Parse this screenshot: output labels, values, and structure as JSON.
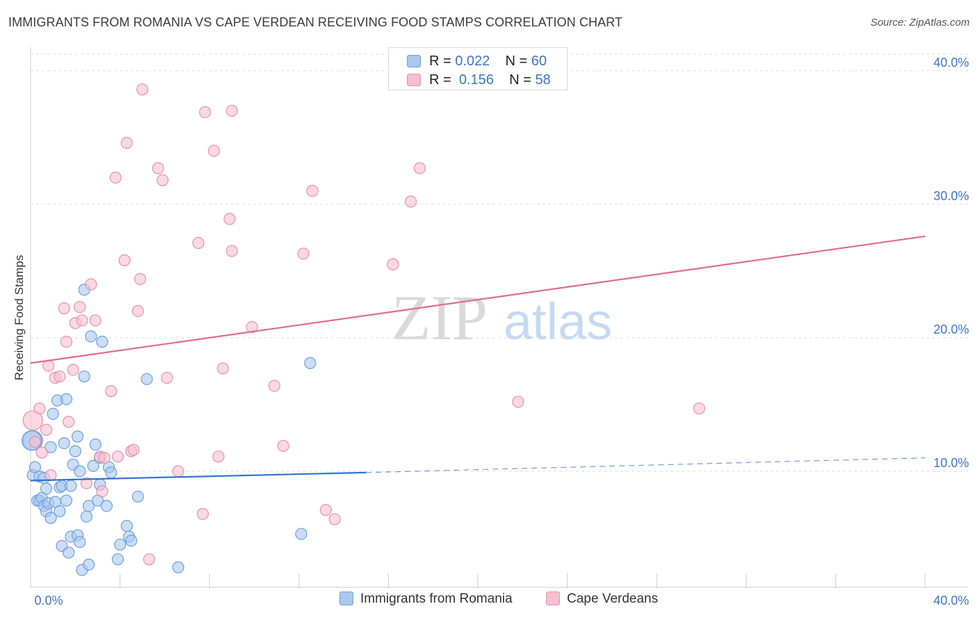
{
  "title": "IMMIGRANTS FROM ROMANIA VS CAPE VERDEAN RECEIVING FOOD STAMPS CORRELATION CHART",
  "source": "Source: ZipAtlas.com",
  "watermark": {
    "zip": "ZIP",
    "atlas": "atlas"
  },
  "legend_top": [
    {
      "r_label": "R = ",
      "r_value": "0.022",
      "n_label": "N = ",
      "n_value": "60"
    },
    {
      "r_label": "R = ",
      "r_value": "0.156",
      "n_label": "N = ",
      "n_value": "58"
    }
  ],
  "colors": {
    "blue_fill": "#aac8ef",
    "blue_stroke": "#6d9fe0",
    "blue_line": "#2f72d6",
    "pink_fill": "#f6bfd0",
    "pink_stroke": "#e98fac",
    "pink_line": "#e26a92",
    "tick_label": "#3d74c6",
    "grid": "#dddddd"
  },
  "chart_data": {
    "type": "scatter",
    "title": "IMMIGRANTS FROM ROMANIA VS CAPE VERDEAN RECEIVING FOOD STAMPS CORRELATION CHART",
    "xlabel": "",
    "ylabel": "Receiving Food Stamps",
    "xlim": [
      0,
      40
    ],
    "ylim": [
      1.3,
      41.5
    ],
    "x_tick_labels": [
      "0.0%",
      "40.0%"
    ],
    "y_ticks": [
      10,
      20,
      30,
      40
    ],
    "y_tick_labels": [
      "10.0%",
      "20.0%",
      "30.0%",
      "40.0%"
    ],
    "grid": "horizontal dashed",
    "legend_position": "top-center",
    "series": [
      {
        "name": "Immigrants from Romania",
        "R": 0.022,
        "N": 60,
        "trend": {
          "x0": 0,
          "y0": 9.3,
          "x1": 15,
          "y1": 9.9,
          "dashed_to_x": 40,
          "dashed_to_y": 11.0
        },
        "points": [
          [
            0.1,
            12.3
          ],
          [
            0.1,
            9.7
          ],
          [
            0.2,
            10.3
          ],
          [
            0.3,
            7.8
          ],
          [
            0.4,
            9.6
          ],
          [
            0.4,
            7.8
          ],
          [
            0.5,
            8.0
          ],
          [
            0.6,
            9.5
          ],
          [
            0.6,
            7.4
          ],
          [
            0.7,
            7.0
          ],
          [
            0.7,
            8.7
          ],
          [
            0.8,
            7.6
          ],
          [
            0.9,
            11.8
          ],
          [
            0.9,
            6.5
          ],
          [
            1.0,
            14.3
          ],
          [
            1.1,
            7.7
          ],
          [
            1.2,
            15.3
          ],
          [
            1.3,
            7.0
          ],
          [
            1.3,
            8.8
          ],
          [
            1.4,
            4.4
          ],
          [
            1.4,
            8.9
          ],
          [
            1.5,
            12.1
          ],
          [
            1.6,
            15.4
          ],
          [
            1.6,
            7.8
          ],
          [
            1.7,
            3.9
          ],
          [
            1.8,
            5.1
          ],
          [
            1.8,
            8.9
          ],
          [
            1.9,
            10.5
          ],
          [
            2.0,
            11.5
          ],
          [
            2.1,
            5.2
          ],
          [
            2.1,
            12.6
          ],
          [
            2.2,
            10.0
          ],
          [
            2.2,
            4.7
          ],
          [
            2.3,
            2.6
          ],
          [
            2.4,
            17.1
          ],
          [
            2.4,
            23.6
          ],
          [
            2.5,
            6.6
          ],
          [
            2.6,
            7.4
          ],
          [
            2.6,
            3.0
          ],
          [
            2.7,
            20.1
          ],
          [
            2.8,
            10.4
          ],
          [
            2.9,
            12.0
          ],
          [
            3.0,
            7.8
          ],
          [
            3.1,
            9.0
          ],
          [
            3.1,
            11.0
          ],
          [
            3.2,
            19.7
          ],
          [
            3.4,
            7.4
          ],
          [
            3.5,
            10.3
          ],
          [
            3.6,
            9.9
          ],
          [
            3.9,
            3.4
          ],
          [
            4.0,
            4.5
          ],
          [
            4.3,
            5.9
          ],
          [
            4.4,
            5.1
          ],
          [
            4.5,
            4.8
          ],
          [
            4.8,
            8.1
          ],
          [
            5.2,
            16.9
          ],
          [
            6.6,
            2.8
          ],
          [
            12.1,
            5.3
          ],
          [
            12.5,
            18.1
          ],
          [
            0.05,
            12.3
          ]
        ]
      },
      {
        "name": "Cape Verdeans",
        "R": 0.156,
        "N": 58,
        "trend": {
          "x0": 0,
          "y0": 18.1,
          "x1": 40,
          "y1": 27.6
        },
        "points": [
          [
            0.1,
            13.8
          ],
          [
            0.2,
            12.2
          ],
          [
            0.4,
            14.7
          ],
          [
            0.5,
            11.4
          ],
          [
            0.7,
            13.1
          ],
          [
            0.8,
            17.9
          ],
          [
            0.9,
            9.7
          ],
          [
            1.1,
            17.0
          ],
          [
            1.3,
            17.1
          ],
          [
            1.5,
            22.2
          ],
          [
            1.6,
            19.7
          ],
          [
            1.7,
            13.7
          ],
          [
            1.9,
            17.6
          ],
          [
            2.0,
            21.1
          ],
          [
            2.2,
            22.3
          ],
          [
            2.3,
            21.3
          ],
          [
            2.5,
            9.1
          ],
          [
            2.7,
            24.0
          ],
          [
            2.9,
            21.3
          ],
          [
            3.1,
            11.1
          ],
          [
            3.2,
            8.5
          ],
          [
            3.3,
            11.0
          ],
          [
            3.6,
            16.0
          ],
          [
            3.8,
            32.0
          ],
          [
            3.9,
            11.1
          ],
          [
            4.2,
            25.8
          ],
          [
            4.3,
            34.6
          ],
          [
            4.5,
            11.5
          ],
          [
            4.6,
            11.6
          ],
          [
            4.8,
            22.0
          ],
          [
            4.9,
            24.4
          ],
          [
            5.0,
            38.6
          ],
          [
            5.3,
            3.4
          ],
          [
            5.7,
            32.7
          ],
          [
            5.9,
            31.8
          ],
          [
            6.1,
            17.0
          ],
          [
            6.6,
            10.0
          ],
          [
            7.5,
            27.1
          ],
          [
            7.7,
            6.8
          ],
          [
            7.8,
            36.9
          ],
          [
            8.2,
            34.0
          ],
          [
            8.4,
            11.1
          ],
          [
            8.6,
            17.7
          ],
          [
            8.9,
            28.9
          ],
          [
            9.0,
            26.5
          ],
          [
            9.0,
            37.0
          ],
          [
            9.9,
            20.8
          ],
          [
            10.9,
            16.4
          ],
          [
            11.3,
            11.9
          ],
          [
            12.2,
            26.3
          ],
          [
            12.6,
            31.0
          ],
          [
            13.2,
            7.1
          ],
          [
            13.6,
            6.4
          ],
          [
            16.2,
            25.5
          ],
          [
            17.0,
            30.2
          ],
          [
            17.4,
            32.7
          ],
          [
            21.8,
            15.2
          ],
          [
            29.9,
            14.7
          ]
        ]
      }
    ]
  },
  "legend_bottom": [
    "Immigrants from Romania",
    "Cape Verdeans"
  ]
}
